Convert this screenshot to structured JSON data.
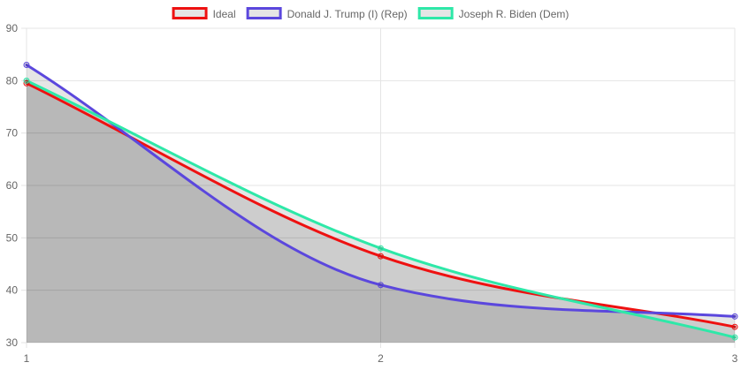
{
  "chart_data": {
    "type": "line",
    "title": "",
    "xlabel": "",
    "ylabel": "",
    "x": [
      1,
      2,
      3
    ],
    "xlim": [
      1,
      3
    ],
    "ylim": [
      30,
      90
    ],
    "y_ticks": [
      30,
      40,
      50,
      60,
      70,
      80,
      90
    ],
    "grid": true,
    "legend_position": "top",
    "fill": "area-to-origin",
    "series": [
      {
        "name": "Ideal",
        "values": [
          79.5,
          46.5,
          33
        ],
        "color": "#ee1111"
      },
      {
        "name": "Donald J. Trump (I) (Rep)",
        "values": [
          83,
          41,
          35
        ],
        "color": "#5b47dd"
      },
      {
        "name": "Joseph R. Biden (Dem)",
        "values": [
          80,
          48,
          31
        ],
        "color": "#2ee8a8"
      }
    ]
  }
}
